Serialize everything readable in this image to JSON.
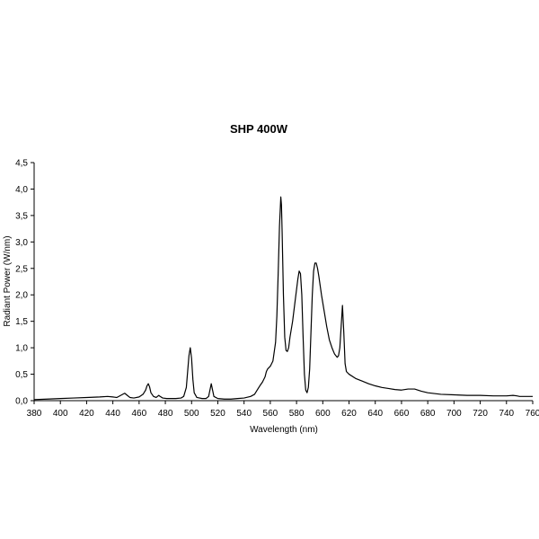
{
  "chart_data": {
    "type": "line",
    "title": "SHP 400W",
    "xlabel": "Wavelength (nm)",
    "ylabel": "Radiant Power (W/nm)",
    "xlim": [
      380,
      760
    ],
    "ylim": [
      0,
      4.5
    ],
    "grid": false,
    "legend": "none",
    "line_color": "#000000",
    "x_ticks": [
      "380",
      "400",
      "420",
      "440",
      "460",
      "480",
      "500",
      "520",
      "540",
      "560",
      "580",
      "600",
      "620",
      "640",
      "660",
      "680",
      "700",
      "720",
      "740",
      "760"
    ],
    "y_ticks": [
      "0,0",
      "0,5",
      "1,0",
      "1,5",
      "2,0",
      "2,5",
      "3,0",
      "3,5",
      "4,0",
      "4,5"
    ],
    "series": [
      {
        "x": [
          380,
          390,
          400,
          410,
          420,
          430,
          436,
          440,
          443,
          446,
          449,
          451,
          453,
          456,
          460,
          463,
          465,
          466,
          467,
          468,
          469,
          471,
          473,
          474,
          475,
          476,
          478,
          481,
          484,
          488,
          492,
          494,
          496,
          497,
          498,
          499,
          500,
          501,
          502,
          504,
          508,
          511,
          513,
          514,
          515,
          516,
          517,
          520,
          525,
          530,
          535,
          540,
          545,
          548,
          550,
          552,
          554,
          556,
          557,
          558,
          560,
          562,
          564,
          565,
          566,
          567,
          568,
          568.5,
          569,
          570,
          571,
          572,
          573,
          574,
          575,
          577,
          579,
          581,
          582,
          583,
          584,
          585,
          586,
          587,
          588,
          589,
          590,
          591,
          592,
          593,
          594,
          595,
          596,
          597,
          599,
          601,
          603,
          605,
          607,
          609,
          611,
          612,
          613,
          614,
          615,
          616,
          617,
          618,
          620,
          625,
          630,
          635,
          640,
          645,
          650,
          655,
          660,
          665,
          670,
          675,
          680,
          690,
          700,
          710,
          720,
          730,
          740,
          745,
          748,
          750,
          752,
          755,
          760
        ],
        "y": [
          0.02,
          0.03,
          0.04,
          0.05,
          0.06,
          0.07,
          0.08,
          0.07,
          0.06,
          0.1,
          0.14,
          0.1,
          0.06,
          0.05,
          0.07,
          0.12,
          0.2,
          0.28,
          0.32,
          0.26,
          0.15,
          0.08,
          0.06,
          0.08,
          0.1,
          0.08,
          0.05,
          0.04,
          0.04,
          0.04,
          0.05,
          0.08,
          0.25,
          0.55,
          0.85,
          1.0,
          0.8,
          0.4,
          0.15,
          0.06,
          0.04,
          0.04,
          0.08,
          0.2,
          0.32,
          0.2,
          0.08,
          0.04,
          0.03,
          0.03,
          0.04,
          0.05,
          0.08,
          0.12,
          0.2,
          0.28,
          0.35,
          0.45,
          0.55,
          0.6,
          0.65,
          0.75,
          1.1,
          1.6,
          2.4,
          3.3,
          3.85,
          3.7,
          3.2,
          2.0,
          1.2,
          0.95,
          0.93,
          1.0,
          1.2,
          1.5,
          1.9,
          2.3,
          2.45,
          2.4,
          2.0,
          1.2,
          0.5,
          0.2,
          0.15,
          0.25,
          0.6,
          1.3,
          2.0,
          2.45,
          2.6,
          2.6,
          2.5,
          2.35,
          2.0,
          1.7,
          1.4,
          1.15,
          1.0,
          0.88,
          0.82,
          0.85,
          1.0,
          1.4,
          1.8,
          1.3,
          0.7,
          0.55,
          0.5,
          0.42,
          0.37,
          0.32,
          0.28,
          0.25,
          0.23,
          0.21,
          0.2,
          0.22,
          0.22,
          0.18,
          0.15,
          0.12,
          0.11,
          0.1,
          0.1,
          0.09,
          0.09,
          0.1,
          0.09,
          0.08,
          0.08,
          0.08,
          0.08
        ]
      }
    ]
  }
}
